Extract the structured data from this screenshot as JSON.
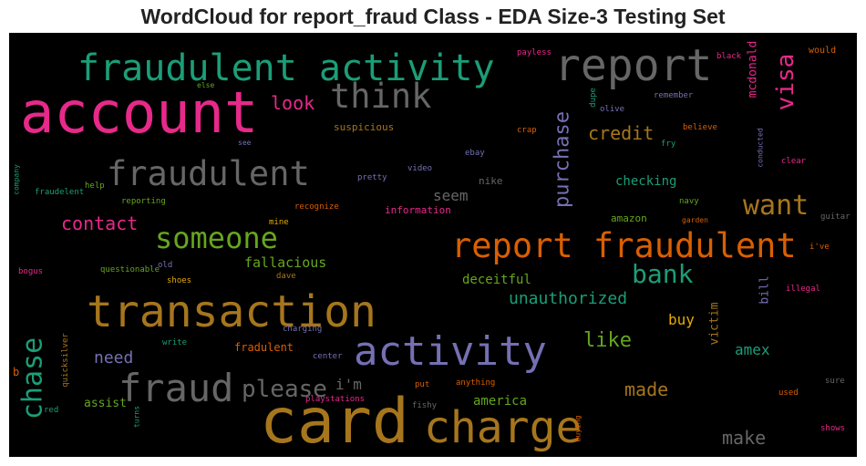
{
  "chart_data": {
    "type": "wordcloud",
    "title": "WordCloud for report_fraud Class - EDA Size-3 Testing Set",
    "background": "#000000",
    "words": [
      {
        "text": "account",
        "color": "#e7298a"
      },
      {
        "text": "fraudulent activity",
        "color": "#1b9e77"
      },
      {
        "text": "report",
        "color": "#666666"
      },
      {
        "text": "think",
        "color": "#666666"
      },
      {
        "text": "look",
        "color": "#e7298a"
      },
      {
        "text": "visa",
        "color": "#e7298a"
      },
      {
        "text": "mcdonald",
        "color": "#e7298a"
      },
      {
        "text": "fraudulent",
        "color": "#666666"
      },
      {
        "text": "purchase",
        "color": "#7570b3"
      },
      {
        "text": "credit",
        "color": "#a6761d"
      },
      {
        "text": "suspicious",
        "color": "#a6761d"
      },
      {
        "text": "want",
        "color": "#a6761d"
      },
      {
        "text": "report fraudulent",
        "color": "#d95f02"
      },
      {
        "text": "someone",
        "color": "#66a61e"
      },
      {
        "text": "contact",
        "color": "#e7298a"
      },
      {
        "text": "seem",
        "color": "#666666"
      },
      {
        "text": "checking",
        "color": "#1b9e77"
      },
      {
        "text": "nike",
        "color": "#666666"
      },
      {
        "text": "bank",
        "color": "#1b9e77"
      },
      {
        "text": "transaction",
        "color": "#a6761d"
      },
      {
        "text": "fallacious",
        "color": "#66a61e"
      },
      {
        "text": "unauthorized",
        "color": "#1b9e77"
      },
      {
        "text": "deceitful",
        "color": "#66a61e"
      },
      {
        "text": "activity",
        "color": "#7570b3"
      },
      {
        "text": "like",
        "color": "#66a61e"
      },
      {
        "text": "chase",
        "color": "#1b9e77"
      },
      {
        "text": "need",
        "color": "#7570b3"
      },
      {
        "text": "fraud",
        "color": "#666666"
      },
      {
        "text": "please",
        "color": "#666666"
      },
      {
        "text": "i'm",
        "color": "#666666"
      },
      {
        "text": "card",
        "color": "#a6761d"
      },
      {
        "text": "charge",
        "color": "#a6761d"
      },
      {
        "text": "made",
        "color": "#a6761d"
      },
      {
        "text": "make",
        "color": "#666666"
      },
      {
        "text": "amex",
        "color": "#1b9e77"
      },
      {
        "text": "buy",
        "color": "#e6ab02"
      },
      {
        "text": "victim",
        "color": "#a6761d"
      },
      {
        "text": "bill",
        "color": "#7570b3"
      },
      {
        "text": "america",
        "color": "#66a61e"
      },
      {
        "text": "assist",
        "color": "#66a61e"
      },
      {
        "text": "red",
        "color": "#1b9e77"
      },
      {
        "text": "b",
        "color": "#d95f02"
      },
      {
        "text": "quicksilver",
        "color": "#a6761d"
      },
      {
        "text": "turns",
        "color": "#1b9e77"
      },
      {
        "text": "write",
        "color": "#1b9e77"
      },
      {
        "text": "fradulent",
        "color": "#d95f02"
      },
      {
        "text": "center",
        "color": "#7570b3"
      },
      {
        "text": "charging",
        "color": "#7570b3"
      },
      {
        "text": "anything",
        "color": "#d95f02"
      },
      {
        "text": "put",
        "color": "#d95f02"
      },
      {
        "text": "playstations",
        "color": "#e7298a"
      },
      {
        "text": "fishy",
        "color": "#666666"
      },
      {
        "text": "buying",
        "color": "#d95f02"
      },
      {
        "text": "used",
        "color": "#d95f02"
      },
      {
        "text": "sure",
        "color": "#666666"
      },
      {
        "text": "shows",
        "color": "#e7298a"
      },
      {
        "text": "illegal",
        "color": "#e7298a"
      },
      {
        "text": "i've",
        "color": "#d95f02"
      },
      {
        "text": "guitar",
        "color": "#666666"
      },
      {
        "text": "garden",
        "color": "#d95f02"
      },
      {
        "text": "navy",
        "color": "#66a61e"
      },
      {
        "text": "amazon",
        "color": "#66a61e"
      },
      {
        "text": "information",
        "color": "#e7298a"
      },
      {
        "text": "reporting",
        "color": "#66a61e"
      },
      {
        "text": "recognize",
        "color": "#d95f02"
      },
      {
        "text": "mine",
        "color": "#e6ab02"
      },
      {
        "text": "help",
        "color": "#66a61e"
      },
      {
        "text": "fraudelent",
        "color": "#1b9e77"
      },
      {
        "text": "company",
        "color": "#1b9e77"
      },
      {
        "text": "bogus",
        "color": "#e7298a"
      },
      {
        "text": "questionable",
        "color": "#66a61e"
      },
      {
        "text": "old",
        "color": "#7570b3"
      },
      {
        "text": "shoes",
        "color": "#e6ab02"
      },
      {
        "text": "dave",
        "color": "#a6761d"
      },
      {
        "text": "pretty",
        "color": "#7570b3"
      },
      {
        "text": "video",
        "color": "#7570b3"
      },
      {
        "text": "ebay",
        "color": "#7570b3"
      },
      {
        "text": "crap",
        "color": "#d95f02"
      },
      {
        "text": "dupe",
        "color": "#1b9e77"
      },
      {
        "text": "olive",
        "color": "#7570b3"
      },
      {
        "text": "remember",
        "color": "#7570b3"
      },
      {
        "text": "believe",
        "color": "#d95f02"
      },
      {
        "text": "fry",
        "color": "#1b9e77"
      },
      {
        "text": "conducted",
        "color": "#7570b3"
      },
      {
        "text": "clear",
        "color": "#e7298a"
      },
      {
        "text": "black",
        "color": "#e7298a"
      },
      {
        "text": "would",
        "color": "#d95f02"
      },
      {
        "text": "payless",
        "color": "#e7298a"
      },
      {
        "text": "else",
        "color": "#66a61e"
      },
      {
        "text": "see",
        "color": "#7570b3"
      }
    ]
  }
}
